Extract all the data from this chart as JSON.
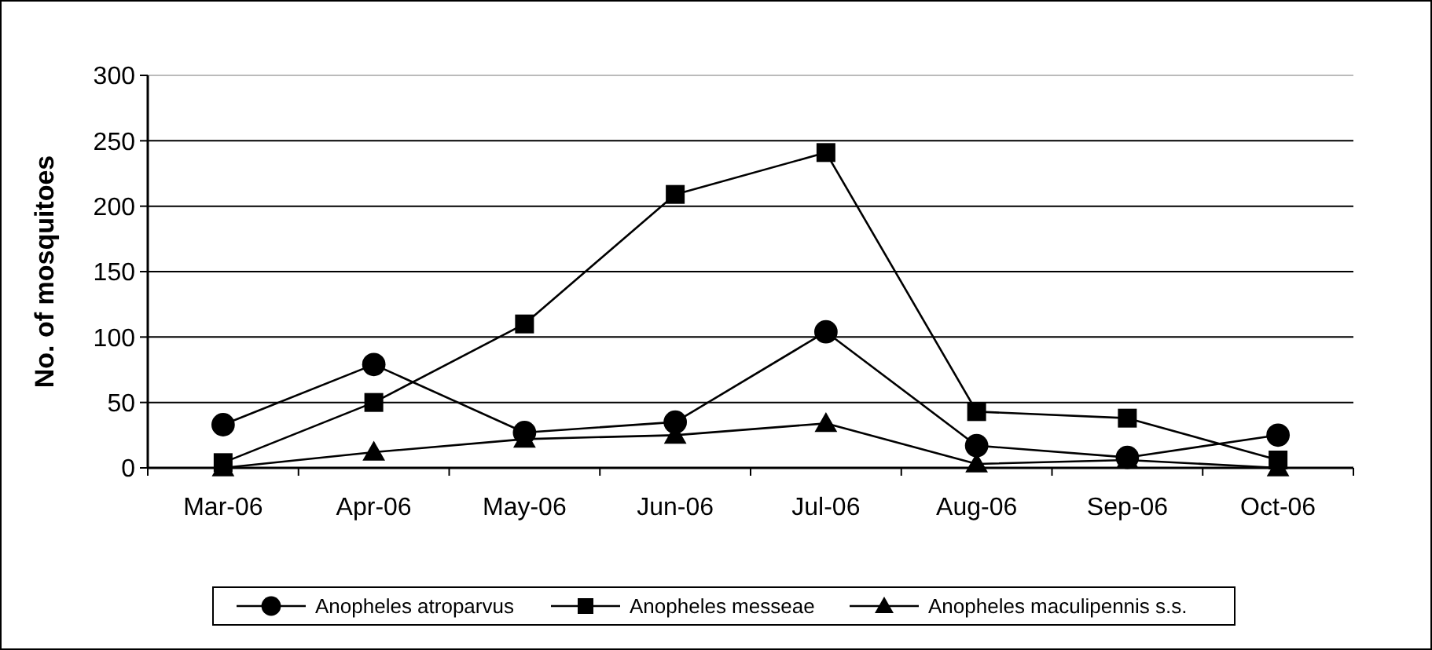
{
  "chart_data": {
    "type": "line",
    "ylabel": "No. of mosquitoes",
    "categories": [
      "Mar-06",
      "Apr-06",
      "May-06",
      "Jun-06",
      "Jul-06",
      "Aug-06",
      "Sep-06",
      "Oct-06"
    ],
    "series": [
      {
        "name": "Anopheles atroparvus",
        "color": "#000000",
        "marker": "circle",
        "values": [
          33,
          79,
          27,
          35,
          104,
          17,
          8,
          25
        ]
      },
      {
        "name": "Anopheles messeae",
        "color": "#000000",
        "marker": "square",
        "values": [
          4,
          50,
          110,
          209,
          241,
          43,
          38,
          6
        ]
      },
      {
        "name": "Anopheles maculipennis s.s.",
        "color": "#000000",
        "marker": "triangle",
        "values": [
          0,
          12,
          22,
          25,
          34,
          3,
          6,
          0
        ]
      }
    ],
    "ylim": [
      0,
      300
    ],
    "yticks": [
      0,
      50,
      100,
      150,
      200,
      250,
      300
    ],
    "grid": "y",
    "legend": "bottom",
    "line_style": "solid"
  }
}
